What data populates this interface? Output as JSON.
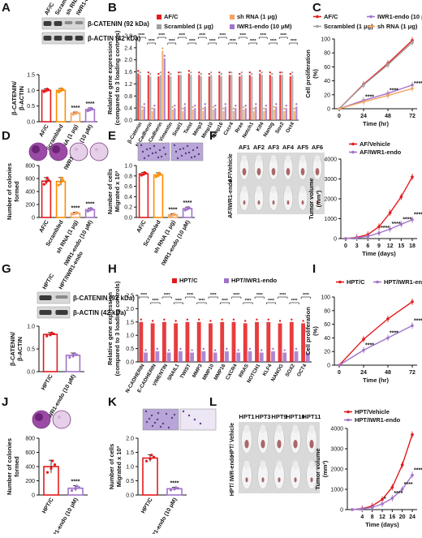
{
  "chart_data": [
    {
      "id": "A",
      "type": "bar",
      "blot": {
        "lanes": [
          "AF/C",
          "Scrambled",
          "sh RNA",
          "IWR1-endo"
        ],
        "bands": [
          "β-CATENIN (92 kDa)",
          "β-ACTIN (42 kDa)"
        ]
      },
      "categories": [
        "AF/C",
        "Scrambled",
        "sh RNA (1 μg)",
        "IWR1-endo (10 μM)"
      ],
      "values": [
        1.0,
        1.0,
        0.27,
        0.39
      ],
      "errors": [
        0.05,
        0.06,
        0.04,
        0.05
      ],
      "significance": [
        "",
        "",
        "****",
        "****"
      ],
      "ylabel": "β-CATENIN/ β-ACTIN",
      "yticks": [
        "0.0",
        "0.5",
        "1.0",
        "1.5"
      ],
      "ylim": [
        0,
        1.5
      ],
      "colors": [
        "#e41a1c",
        "#ff8c00",
        "#f4a460",
        "#a173c9"
      ]
    },
    {
      "id": "B",
      "type": "bar",
      "legend": [
        "AF/C",
        "Scrambled (1 μg)",
        "sh RNA (1 μg)",
        "IWR1-endo (10 μM)"
      ],
      "categories": [
        "β-Catenin",
        "N-Cadherin",
        "E-Cadherin",
        "Vimentin",
        "Snail1",
        "Twist",
        "Mmp3",
        "Mmp10",
        "Mmp16",
        "Cxcr4",
        "Rras",
        "Notch1",
        "Klf4",
        "Nanog",
        "Sox2",
        "Oct4"
      ],
      "series": [
        {
          "name": "AF/C",
          "values": [
            1.55,
            1.5,
            1.45,
            1.5,
            1.5,
            1.55,
            1.5,
            1.45,
            1.5,
            1.5,
            1.45,
            1.5,
            1.55,
            1.5,
            1.5,
            1.45
          ]
        },
        {
          "name": "Scrambled (1 μg)",
          "values": [
            1.5,
            1.45,
            1.5,
            1.45,
            1.5,
            1.5,
            1.45,
            1.5,
            1.45,
            1.5,
            1.5,
            1.45,
            1.5,
            1.45,
            1.5,
            1.5
          ]
        },
        {
          "name": "sh RNA (1 μg)",
          "values": [
            0.35,
            0.3,
            2.3,
            0.35,
            0.3,
            0.35,
            0.3,
            0.35,
            0.3,
            0.3,
            0.35,
            0.3,
            0.3,
            0.35,
            0.3,
            0.3
          ]
        },
        {
          "name": "IWR1-endo (10 μM)",
          "values": [
            0.45,
            0.4,
            2.05,
            0.4,
            0.45,
            0.4,
            0.45,
            0.4,
            0.45,
            0.4,
            0.4,
            0.45,
            0.4,
            0.45,
            0.4,
            0.45
          ]
        }
      ],
      "significance": "****",
      "ylabel": "Relative gene expression (compared to 3 loading controls)",
      "yticks": [
        "0.0",
        "0.4",
        "0.8",
        "1.2",
        "1.6",
        "2.0",
        "2.4",
        "2.8"
      ],
      "ylim": [
        0,
        2.8
      ],
      "colors": [
        "#e41a1c",
        "#a0a0a0",
        "#f4a460",
        "#a173c9"
      ]
    },
    {
      "id": "C",
      "type": "line",
      "legend": [
        "AF/C",
        "Scrambled (1 μg)",
        "IWR1-endo (10 μM)",
        "sh RNA (1 μg)"
      ],
      "x": [
        0,
        24,
        48,
        72
      ],
      "series": [
        {
          "name": "AF/C",
          "values": [
            0,
            35,
            65,
            98
          ]
        },
        {
          "name": "Scrambled (1 μg)",
          "values": [
            0,
            34,
            63,
            95
          ]
        },
        {
          "name": "IWR1-endo (10 μM)",
          "values": [
            0,
            12,
            22,
            34
          ]
        },
        {
          "name": "sh RNA (1 μg)",
          "values": [
            0,
            10,
            19,
            29
          ]
        }
      ],
      "significance": [
        "****",
        "****",
        "****"
      ],
      "xlabel": "Time (hr)",
      "ylabel": "Cell proliferation (%)",
      "yticks": [
        "0",
        "20",
        "40",
        "60",
        "80",
        "100"
      ],
      "xticks": [
        "0",
        "24",
        "48",
        "72"
      ],
      "ylim": [
        0,
        100
      ],
      "colors": [
        "#e41a1c",
        "#a0a0a0",
        "#a173c9",
        "#f4a460"
      ]
    },
    {
      "id": "D",
      "type": "bar",
      "categories": [
        "AF/C",
        "Scrambled",
        "sh RNA (1 μg)",
        "IWR1-endo (10 μM)"
      ],
      "values": [
        560,
        555,
        65,
        120
      ],
      "errors": [
        55,
        60,
        15,
        25
      ],
      "significance": [
        "",
        "",
        "****",
        "****"
      ],
      "ylabel": "Number of colonies formed",
      "yticks": [
        "0",
        "200",
        "400",
        "600",
        "800"
      ],
      "ylim": [
        0,
        800
      ],
      "colors": [
        "#e41a1c",
        "#ff8c00",
        "#f4a460",
        "#a173c9"
      ]
    },
    {
      "id": "E",
      "type": "bar",
      "categories": [
        "AF/C",
        "Scrambled",
        "sh RNA (1 μg)",
        "IWR1-endo (10 μM)"
      ],
      "values": [
        0.84,
        0.82,
        0.05,
        0.17
      ],
      "errors": [
        0.03,
        0.04,
        0.02,
        0.03
      ],
      "significance": [
        "",
        "",
        "****",
        "****"
      ],
      "ylabel": "Number of cells Migrated x 10³",
      "yticks": [
        "0.0",
        "0.2",
        "0.4",
        "0.6",
        "0.8",
        "1.0"
      ],
      "ylim": [
        0,
        1.0
      ],
      "colors": [
        "#e41a1c",
        "#ff8c00",
        "#f4a460",
        "#a173c9"
      ]
    },
    {
      "id": "F",
      "type": "line",
      "photo": {
        "columns": [
          "AF1",
          "AF2",
          "AF3",
          "AF4",
          "AF5",
          "AF6"
        ],
        "rows": [
          "AF/Vehicle",
          "AF/IWR1-endo"
        ]
      },
      "legend": [
        "AF/Vehicle",
        "AF/IWR1-endo"
      ],
      "x": [
        0,
        3,
        6,
        9,
        12,
        15,
        18
      ],
      "series": [
        {
          "name": "AF/Vehicle",
          "values": [
            0,
            60,
            200,
            600,
            1300,
            2100,
            3100
          ]
        },
        {
          "name": "AF/IWR1-endo",
          "values": [
            0,
            40,
            110,
            280,
            480,
            720,
            950
          ]
        }
      ],
      "significance": [
        "****",
        "****",
        "****",
        "****"
      ],
      "xlabel": "Time (days)",
      "ylabel": "Tumor volume (mm³)",
      "yticks": [
        "0",
        "1000",
        "2000",
        "3000",
        "4000"
      ],
      "xticks": [
        "0",
        "3",
        "6",
        "9",
        "12",
        "15",
        "18"
      ],
      "ylim": [
        0,
        4000
      ],
      "colors": [
        "#e41a1c",
        "#a173c9"
      ]
    },
    {
      "id": "G",
      "type": "bar",
      "blot": {
        "lanes": [
          "HPT/C",
          "HPT/IWR1-endo"
        ],
        "bands": [
          "β-CATENIN (92 kDa)",
          "β-ACTIN (42 kDa)"
        ]
      },
      "categories": [
        "HPT/C",
        "IWR1-endo (10 μM)"
      ],
      "values": [
        0.82,
        0.36
      ],
      "errors": [
        0.04,
        0.05
      ],
      "significance": [
        "",
        ""
      ],
      "ylabel": "β-CATENIN/ β-ACTIN",
      "yticks": [
        "0.0",
        "0.5",
        "1.0"
      ],
      "ylim": [
        0,
        1.0
      ],
      "colors": [
        "#e41a1c",
        "#a173c9"
      ]
    },
    {
      "id": "H",
      "type": "bar",
      "legend": [
        "HPT/C",
        "HPT/IWR1-endo"
      ],
      "categories": [
        "N-CADHERIN",
        "E-CADHERIN",
        "VIMENTIN",
        "SNAIL1",
        "TWIST",
        "MMP3",
        "MMP10",
        "MMP16",
        "CXCR4",
        "RRAS",
        "NOTCH1",
        "KLF4",
        "NANOG",
        "SOX2",
        "OCT4"
      ],
      "series": [
        {
          "name": "HPT/C",
          "values": [
            1.5,
            1.45,
            1.5,
            1.45,
            1.5,
            1.5,
            1.45,
            1.5,
            1.5,
            1.45,
            1.5,
            1.5,
            1.45,
            1.5,
            1.45
          ]
        },
        {
          "name": "HPT/IWR1-endo",
          "values": [
            0.35,
            0.4,
            0.35,
            0.4,
            0.35,
            0.4,
            0.35,
            0.4,
            0.35,
            0.4,
            0.35,
            0.4,
            0.35,
            0.4,
            0.35
          ]
        }
      ],
      "significance": "****",
      "ylabel": "Relative gene expression (compared to 3 loading controls)",
      "yticks": [
        "0.0",
        "0.5",
        "1.0",
        "1.5",
        "2.0",
        "2.5"
      ],
      "ylim": [
        0,
        2.5
      ],
      "colors": [
        "#e41a1c",
        "#a173c9"
      ]
    },
    {
      "id": "I",
      "type": "line",
      "legend": [
        "HPT/C",
        "HPT/IWR1-endo"
      ],
      "x": [
        0,
        24,
        48,
        72
      ],
      "series": [
        {
          "name": "HPT/C",
          "values": [
            0,
            38,
            68,
            93
          ]
        },
        {
          "name": "HPT/IWR1-endo",
          "values": [
            0,
            22,
            40,
            58
          ]
        }
      ],
      "significance": [
        "****",
        "****",
        "****"
      ],
      "xlabel": "Time (hr)",
      "ylabel": "Cell proliferation (%)",
      "yticks": [
        "0",
        "20",
        "40",
        "60",
        "80",
        "100"
      ],
      "xticks": [
        "0",
        "24",
        "48",
        "72"
      ],
      "ylim": [
        0,
        100
      ],
      "colors": [
        "#e41a1c",
        "#a173c9"
      ]
    },
    {
      "id": "J",
      "type": "bar",
      "categories": [
        "HPT/C",
        "IWR1-endo (10 μM)"
      ],
      "values": [
        400,
        95
      ],
      "errors": [
        90,
        35
      ],
      "significance": [
        "",
        "****"
      ],
      "ylabel": "Number of colonies formed",
      "yticks": [
        "0",
        "200",
        "400",
        "600",
        "800"
      ],
      "ylim": [
        0,
        800
      ],
      "colors": [
        "#e41a1c",
        "#a173c9"
      ]
    },
    {
      "id": "K",
      "type": "bar",
      "categories": [
        "HPT/C",
        "IWR1-endo (10 μM)"
      ],
      "values": [
        1.3,
        0.22
      ],
      "errors": [
        0.12,
        0.05
      ],
      "significance": [
        "",
        "****"
      ],
      "ylabel": "Number of cells Migrated x 10³",
      "yticks": [
        "0.0",
        "0.5",
        "1.0",
        "1.5",
        "2.0"
      ],
      "ylim": [
        0,
        2.0
      ],
      "colors": [
        "#e41a1c",
        "#a173c9"
      ]
    },
    {
      "id": "L",
      "type": "line",
      "photo": {
        "columns": [
          "HPT1",
          "HPT3",
          "HPT9",
          "HPT10",
          "HPT11"
        ],
        "rows": [
          "HPT/ Vehicle",
          "HPT/ IWR-endo"
        ]
      },
      "legend": [
        "HPT/Vehicle",
        "HPT/IWR1-endo"
      ],
      "x": [
        0,
        4,
        8,
        12,
        16,
        20,
        24
      ],
      "series": [
        {
          "name": "HPT/Vehicle",
          "values": [
            0,
            50,
            180,
            500,
            1100,
            2200,
            3700
          ]
        },
        {
          "name": "HPT/IWR1-endo",
          "values": [
            0,
            35,
            110,
            280,
            560,
            1000,
            1700
          ]
        }
      ],
      "significance": [
        "*",
        "****",
        "****",
        "****"
      ],
      "xlabel": "Time (days)",
      "ylabel": "Tumor volume (mm³)",
      "yticks": [
        "0",
        "1000",
        "2000",
        "3000",
        "4000"
      ],
      "xticks": [
        "4",
        "8",
        "12",
        "16",
        "20",
        "24"
      ],
      "ylim": [
        0,
        4000
      ],
      "colors": [
        "#e41a1c",
        "#a173c9"
      ]
    }
  ]
}
